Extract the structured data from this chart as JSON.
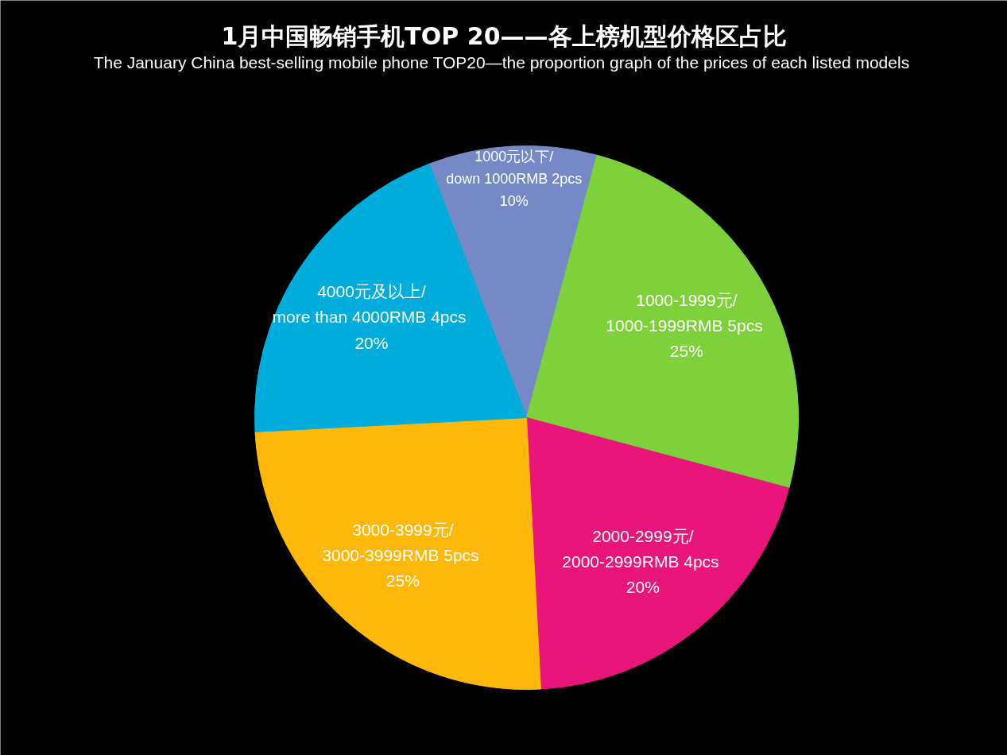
{
  "chart_data": {
    "type": "pie",
    "title": "1月中国畅销手机TOP 20——各上榜机型价格区占比",
    "subtitle": "The  January China best-selling mobile phone TOP20—the proportion graph of the prices of each listed models",
    "categories": [
      "1000元以下/\ndown 1000RMB 2pcs",
      "1000-1999元/\n1000-1999RMB  5pcs",
      "2000-2999元/\n2000-2999RMB  4pcs",
      "3000-3999元/\n3000-3999RMB  5pcs",
      "4000元及以上/\nmore than 4000RMB  4pcs"
    ],
    "values": [
      10,
      25,
      20,
      25,
      20
    ],
    "value_labels": [
      "10%",
      "25%",
      "20%",
      "25%",
      "20%"
    ],
    "colors": [
      "#7489c6",
      "#7fd13b",
      "#ea157a",
      "#feb80a",
      "#00addc"
    ]
  }
}
